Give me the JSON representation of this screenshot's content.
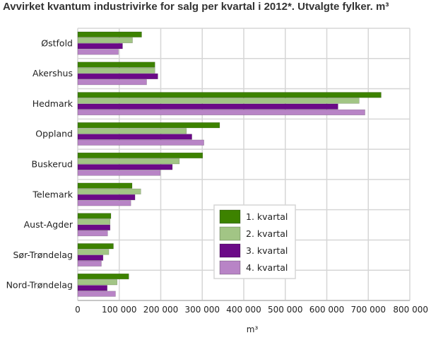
{
  "chart_data": {
    "type": "bar",
    "orientation": "horizontal",
    "title": "Avvirket kvantum industrivirke for salg per kvartal i 2012*. Utvalgte fylker. m³",
    "xlabel": "m³",
    "ylabel": "",
    "xlim": [
      0,
      800000
    ],
    "xticks": [
      0,
      100000,
      200000,
      300000,
      400000,
      500000,
      600000,
      700000,
      800000
    ],
    "xtick_labels": [
      "0",
      "100 000",
      "200 000",
      "300 000",
      "400 000",
      "500 000",
      "600 000",
      "700 000",
      "800 000"
    ],
    "grid": true,
    "legend_position": "lower-right",
    "categories": [
      "Østfold",
      "Akershus",
      "Hedmark",
      "Oppland",
      "Buskerud",
      "Telemark",
      "Aust-Agder",
      "Sør-Trøndelag",
      "Nord-Trøndelag"
    ],
    "series": [
      {
        "name": "1. kvartal",
        "color": "#3d8200",
        "values": [
          154000,
          186000,
          731000,
          342000,
          301000,
          131000,
          80000,
          86000,
          123000
        ]
      },
      {
        "name": "2. kvartal",
        "color": "#a2c585",
        "values": [
          132000,
          186000,
          678000,
          262000,
          245000,
          152000,
          78000,
          75000,
          95000
        ]
      },
      {
        "name": "3. kvartal",
        "color": "#6b0a87",
        "values": [
          108000,
          193000,
          627000,
          275000,
          228000,
          138000,
          78000,
          61000,
          71000
        ]
      },
      {
        "name": "4. kvartal",
        "color": "#b884c6",
        "values": [
          98000,
          166000,
          692000,
          304000,
          199000,
          128000,
          72000,
          57000,
          91000
        ]
      }
    ]
  }
}
